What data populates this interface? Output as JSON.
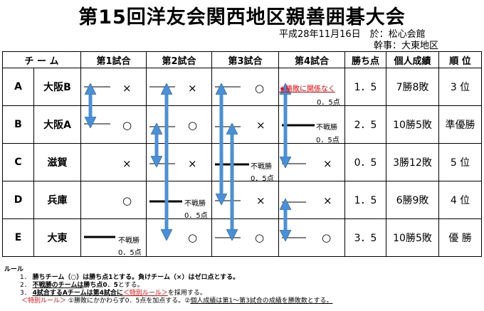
{
  "title": "第15回洋友会関西地区親善囲碁大会",
  "date_line": "平成28年11月16日　於：松心会館",
  "host_line": "幹事：大東地区",
  "columns": [
    "チ ー ム",
    "第1試合",
    "第2試合",
    "第3試合",
    "第4試合",
    "勝ち点",
    "個人成績",
    "順 位"
  ],
  "rows": [
    {
      "id": "A",
      "name": "大阪B",
      "points": "1．5",
      "record": "7勝8敗",
      "rank": "3 位"
    },
    {
      "id": "B",
      "name": "大阪A",
      "points": "2．5",
      "record": "10勝5敗",
      "rank": "準優勝"
    },
    {
      "id": "C",
      "name": "滋賀",
      "points": "0．5",
      "record": "3勝12敗",
      "rank": "5 位"
    },
    {
      "id": "D",
      "name": "兵庫",
      "points": "1．5",
      "record": "6勝9敗",
      "rank": "4 位"
    },
    {
      "id": "E",
      "name": "大東",
      "points": "3．5",
      "record": "10勝5敗",
      "rank": "優 勝"
    }
  ],
  "symbols": {
    "win": "○",
    "loss": "×"
  },
  "forfeit": {
    "label": "不戦勝",
    "points": "0．5点"
  },
  "special_label": "★勝敗に関係なく",
  "special_points": "0．5点",
  "rules": {
    "heading": "ルール",
    "r1_no": "1．",
    "r1": "勝ちチーム（○）は勝ち点1とする。負けチーム（×）はゼロ点とする。",
    "r2_no": "2．",
    "r2a": "不戦勝のチームは",
    "r2b": "勝ち点0．5",
    "r2c": "とする。",
    "r3_no": "3．",
    "r3a": "4試合するAチームは",
    "r3b": "第4試合に",
    "r3c": "＜特別ルール＞",
    "r3d": "を採用する。",
    "r4a": "＜特別ルール＞",
    "r4b": "①勝敗にかかわらず0．5点を加点する。②",
    "r4c": "個人成績は第1～第3試合の成績を勝敗数とする。"
  },
  "colors": {
    "arrow": "#4a90d9",
    "arrow_stroke": "#2f6fae",
    "line": "#000000",
    "red": "#ff0000"
  }
}
